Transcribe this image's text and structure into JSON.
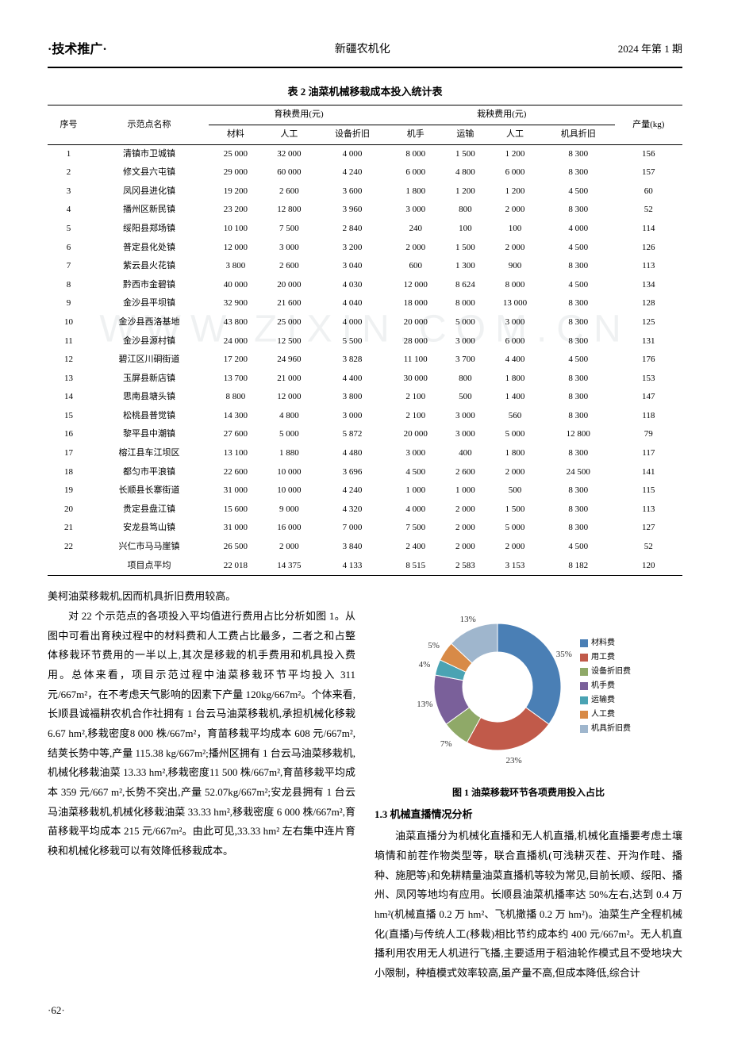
{
  "header": {
    "section": "·技术推广·",
    "journal": "新疆农机化",
    "issue": "2024 年第 1 期"
  },
  "table": {
    "caption": "表 2  油菜机械移栽成本投入统计表",
    "group_headers": {
      "seq": "序号",
      "site": "示范点名称",
      "seedling_cost": "育秧费用(元)",
      "transplant_cost": "栽秧费用(元)",
      "yield": "产量(kg)"
    },
    "sub_headers": {
      "material": "材料",
      "labor_seed": "人工",
      "equip_dep": "设备折旧",
      "operator": "机手",
      "transport": "运输",
      "labor_trans": "人工",
      "tool_dep": "机具折旧"
    },
    "rows": [
      {
        "n": "1",
        "site": "清镇市卫城镇",
        "a": "25 000",
        "b": "32 000",
        "c": "4 000",
        "d": "8 000",
        "e": "1 500",
        "f": "1 200",
        "g": "8 300",
        "h": "156"
      },
      {
        "n": "2",
        "site": "修文县六屯镇",
        "a": "29 000",
        "b": "60 000",
        "c": "4 240",
        "d": "6 000",
        "e": "4 800",
        "f": "6 000",
        "g": "8 300",
        "h": "157"
      },
      {
        "n": "3",
        "site": "凤冈县进化镇",
        "a": "19 200",
        "b": "2 600",
        "c": "3 600",
        "d": "1 800",
        "e": "1 200",
        "f": "1 200",
        "g": "4 500",
        "h": "60"
      },
      {
        "n": "4",
        "site": "播州区新民镇",
        "a": "23 200",
        "b": "12 800",
        "c": "3 960",
        "d": "3 000",
        "e": "800",
        "f": "2 000",
        "g": "8 300",
        "h": "52"
      },
      {
        "n": "5",
        "site": "绥阳县郑场镇",
        "a": "10 100",
        "b": "7 500",
        "c": "2 840",
        "d": "240",
        "e": "100",
        "f": "100",
        "g": "4 000",
        "h": "114"
      },
      {
        "n": "6",
        "site": "普定县化处镇",
        "a": "12 000",
        "b": "3 000",
        "c": "3 200",
        "d": "2 000",
        "e": "1 500",
        "f": "2 000",
        "g": "4 500",
        "h": "126"
      },
      {
        "n": "7",
        "site": "紫云县火花镇",
        "a": "3 800",
        "b": "2 600",
        "c": "3 040",
        "d": "600",
        "e": "1 300",
        "f": "900",
        "g": "8 300",
        "h": "113"
      },
      {
        "n": "8",
        "site": "黔西市金碧镇",
        "a": "40 000",
        "b": "20 000",
        "c": "4 030",
        "d": "12 000",
        "e": "8 624",
        "f": "8 000",
        "g": "4 500",
        "h": "134"
      },
      {
        "n": "9",
        "site": "金沙县平坝镇",
        "a": "32 900",
        "b": "21 600",
        "c": "4 040",
        "d": "18 000",
        "e": "8 000",
        "f": "13 000",
        "g": "8 300",
        "h": "128"
      },
      {
        "n": "10",
        "site": "金沙县西洛基地",
        "a": "43 800",
        "b": "25 000",
        "c": "4 000",
        "d": "20 000",
        "e": "5 000",
        "f": "3 000",
        "g": "8 300",
        "h": "125"
      },
      {
        "n": "11",
        "site": "金沙县源村镇",
        "a": "24 000",
        "b": "12 500",
        "c": "5 500",
        "d": "28 000",
        "e": "3 000",
        "f": "6 000",
        "g": "8 300",
        "h": "131"
      },
      {
        "n": "12",
        "site": "碧江区川硐街道",
        "a": "17 200",
        "b": "24 960",
        "c": "3 828",
        "d": "11 100",
        "e": "3 700",
        "f": "4 400",
        "g": "4 500",
        "h": "176"
      },
      {
        "n": "13",
        "site": "玉屏县新店镇",
        "a": "13 700",
        "b": "21 000",
        "c": "4 400",
        "d": "30 000",
        "e": "800",
        "f": "1 800",
        "g": "8 300",
        "h": "153"
      },
      {
        "n": "14",
        "site": "思南县塘头镇",
        "a": "8 800",
        "b": "12 000",
        "c": "3 800",
        "d": "2 100",
        "e": "500",
        "f": "1 400",
        "g": "8 300",
        "h": "147"
      },
      {
        "n": "15",
        "site": "松桃县普觉镇",
        "a": "14 300",
        "b": "4 800",
        "c": "3 000",
        "d": "2 100",
        "e": "3 000",
        "f": "560",
        "g": "8 300",
        "h": "118"
      },
      {
        "n": "16",
        "site": "黎平县中潮镇",
        "a": "27 600",
        "b": "5 000",
        "c": "5 872",
        "d": "20 000",
        "e": "3 000",
        "f": "5 000",
        "g": "12 800",
        "h": "79"
      },
      {
        "n": "17",
        "site": "榕江县车江坝区",
        "a": "13 100",
        "b": "1 880",
        "c": "4 480",
        "d": "3 000",
        "e": "400",
        "f": "1 800",
        "g": "8 300",
        "h": "117"
      },
      {
        "n": "18",
        "site": "都匀市平浪镇",
        "a": "22 600",
        "b": "10 000",
        "c": "3 696",
        "d": "4 500",
        "e": "2 600",
        "f": "2 000",
        "g": "24 500",
        "h": "141"
      },
      {
        "n": "19",
        "site": "长顺县长寨街道",
        "a": "31 000",
        "b": "10 000",
        "c": "4 240",
        "d": "1 000",
        "e": "1 000",
        "f": "500",
        "g": "8 300",
        "h": "115"
      },
      {
        "n": "20",
        "site": "贵定县盘江镇",
        "a": "15 600",
        "b": "9 000",
        "c": "4 320",
        "d": "4 000",
        "e": "2 000",
        "f": "1 500",
        "g": "8 300",
        "h": "113"
      },
      {
        "n": "21",
        "site": "安龙县笃山镇",
        "a": "31 000",
        "b": "16 000",
        "c": "7 000",
        "d": "7 500",
        "e": "2 000",
        "f": "5 000",
        "g": "8 300",
        "h": "127"
      },
      {
        "n": "22",
        "site": "兴仁市马马崖镇",
        "a": "26 500",
        "b": "2 000",
        "c": "3 840",
        "d": "2 400",
        "e": "2 000",
        "f": "2 000",
        "g": "4 500",
        "h": "52"
      }
    ],
    "avg_row": {
      "n": "",
      "site": "项目点平均",
      "a": "22 018",
      "b": "14 375",
      "c": "4 133",
      "d": "8 515",
      "e": "2 583",
      "f": "3 153",
      "g": "8 182",
      "h": "120"
    }
  },
  "left_text": {
    "p0": "美柯油菜移栽机,因而机具折旧费用较高。",
    "p1": "对 22 个示范点的各项投入平均值进行费用占比分析如图 1。从图中可看出育秧过程中的材料费和人工费占比最多，二者之和占整体移栽环节费用的一半以上,其次是移栽的机手费用和机具投入费用。总体来看，项目示范过程中油菜移栽环节平均投入 311 元/667m²，在不考虑天气影响的因素下产量 120kg/667m²。个体来看,长顺县诚福耕农机合作社拥有 1 台云马油菜移栽机,承担机械化移栽 6.67 hm²,移栽密度8 000 株/667m²，育苗移栽平均成本 608 元/667m²,结荚长势中等,产量 115.38 kg/667m²;播州区拥有 1 台云马油菜移栽机,机械化移栽油菜 13.33 hm²,移栽密度11 500 株/667m²,育苗移栽平均成本 359 元/667 m²,长势不突出,产量 52.07kg/667m²;安龙县拥有 1 台云马油菜移栽机,机械化移栽油菜 33.33 hm²,移栽密度 6 000 株/667m²,育苗移栽平均成本 215 元/667m²。由此可见,33.33 hm² 左右集中连片育秧和机械化移栽可以有效降低移栽成本。"
  },
  "figure": {
    "caption": "图 1  油菜移栽环节各项费用投入占比",
    "slices": [
      {
        "label": "材料费",
        "pct": 35,
        "color": "#4a7fb5"
      },
      {
        "label": "用工费",
        "pct": 23,
        "color": "#c15a4a"
      },
      {
        "label": "设备折旧费",
        "pct": 7,
        "color": "#8fa968"
      },
      {
        "label": "机手费",
        "pct": 13,
        "color": "#7a609a"
      },
      {
        "label": "运输费",
        "pct": 4,
        "color": "#4aa3b3"
      },
      {
        "label": "人工费",
        "pct": 5,
        "color": "#d88a47"
      },
      {
        "label": "机具折旧费",
        "pct": 13,
        "color": "#9fb6cd"
      }
    ],
    "inner_radius_ratio": 0.55,
    "background": "#ffffff",
    "label_fontsize": 11
  },
  "right_text": {
    "subhead": "1.3  机械直播情况分析",
    "p1": "油菜直播分为机械化直播和无人机直播,机械化直播要考虑土壤墒情和前茬作物类型等，联合直播机(可浅耕灭茬、开沟作畦、播种、施肥等)和免耕精量油菜直播机等较为常见,目前长顺、绥阳、播州、凤冈等地均有应用。长顺县油菜机播率达 50%左右,达到 0.4 万hm²(机械直播 0.2 万 hm²、飞机撒播 0.2 万 hm²)。油菜生产全程机械化(直播)与传统人工(移栽)相比节约成本约 400 元/667m²。无人机直播利用农用无人机进行飞播,主要适用于稻油轮作模式且不受地块大小限制，种植模式效率较高,虽产量不高,但成本降低,综合计"
  },
  "footer": {
    "page": "·62·"
  },
  "watermark": "WWW.ZIXIN.COM.CN"
}
